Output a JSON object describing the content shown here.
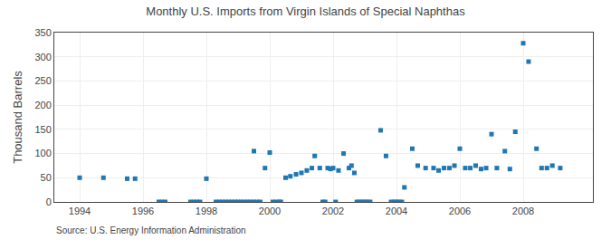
{
  "chart_data": {
    "type": "scatter",
    "title": "Monthly U.S. Imports from Virgin Islands of Special Naphthas",
    "ylabel": "Thousand Barrels",
    "annotations": [
      "Source: U.S. Energy Information Administration"
    ],
    "marker": "square",
    "grid": true,
    "xlim": [
      1993.2,
      2010.2
    ],
    "xticks": [
      1994,
      1996,
      1998,
      2000,
      2002,
      2004,
      2006,
      2008
    ],
    "ylim": [
      0,
      350
    ],
    "yticks": [
      0,
      50,
      100,
      150,
      200,
      250,
      300,
      350
    ],
    "x": [
      1994.0,
      1994.75,
      1995.5,
      1995.75,
      1996.5,
      1996.6,
      1996.7,
      1997.5,
      1997.6,
      1997.7,
      1997.8,
      1998.0,
      1998.3,
      1998.4,
      1998.5,
      1998.6,
      1998.7,
      1998.8,
      1998.9,
      1999.0,
      1999.1,
      1999.2,
      1999.3,
      1999.4,
      1999.5,
      1999.6,
      1999.7,
      1999.5,
      1999.85,
      2000.0,
      2000.1,
      2000.2,
      2000.3,
      2000.35,
      2000.5,
      2000.65,
      2000.83,
      2001.0,
      2001.17,
      2001.33,
      2001.42,
      2001.58,
      2001.67,
      2001.75,
      2001.83,
      2001.92,
      2002.0,
      2002.08,
      2002.17,
      2002.33,
      2002.5,
      2002.58,
      2002.67,
      2002.75,
      2002.83,
      2002.92,
      2003.0,
      2003.08,
      2003.17,
      2003.5,
      2003.67,
      2003.83,
      2003.92,
      2004.0,
      2004.08,
      2004.17,
      2004.25,
      2004.5,
      2004.67,
      2004.92,
      2005.17,
      2005.33,
      2005.5,
      2005.67,
      2005.83,
      2006.0,
      2006.17,
      2006.33,
      2006.5,
      2006.67,
      2006.83,
      2007.0,
      2007.17,
      2007.42,
      2007.58,
      2007.75,
      2008.0,
      2008.17,
      2008.42,
      2008.58,
      2008.75,
      2008.92,
      2009.17
    ],
    "values": [
      50,
      50,
      48,
      48,
      0,
      0,
      0,
      0,
      0,
      0,
      0,
      48,
      0,
      0,
      0,
      0,
      0,
      0,
      0,
      0,
      0,
      0,
      0,
      0,
      0,
      0,
      0,
      105,
      70,
      102,
      0,
      0,
      0,
      0,
      50,
      53,
      57,
      60,
      65,
      70,
      95,
      70,
      0,
      0,
      70,
      68,
      70,
      0,
      65,
      100,
      70,
      75,
      60,
      0,
      0,
      0,
      0,
      0,
      0,
      148,
      95,
      0,
      0,
      0,
      0,
      0,
      30,
      110,
      75,
      70,
      70,
      65,
      70,
      70,
      75,
      110,
      70,
      70,
      75,
      68,
      70,
      140,
      70,
      105,
      68,
      145,
      328,
      290,
      110,
      70,
      70,
      75,
      70
    ]
  }
}
